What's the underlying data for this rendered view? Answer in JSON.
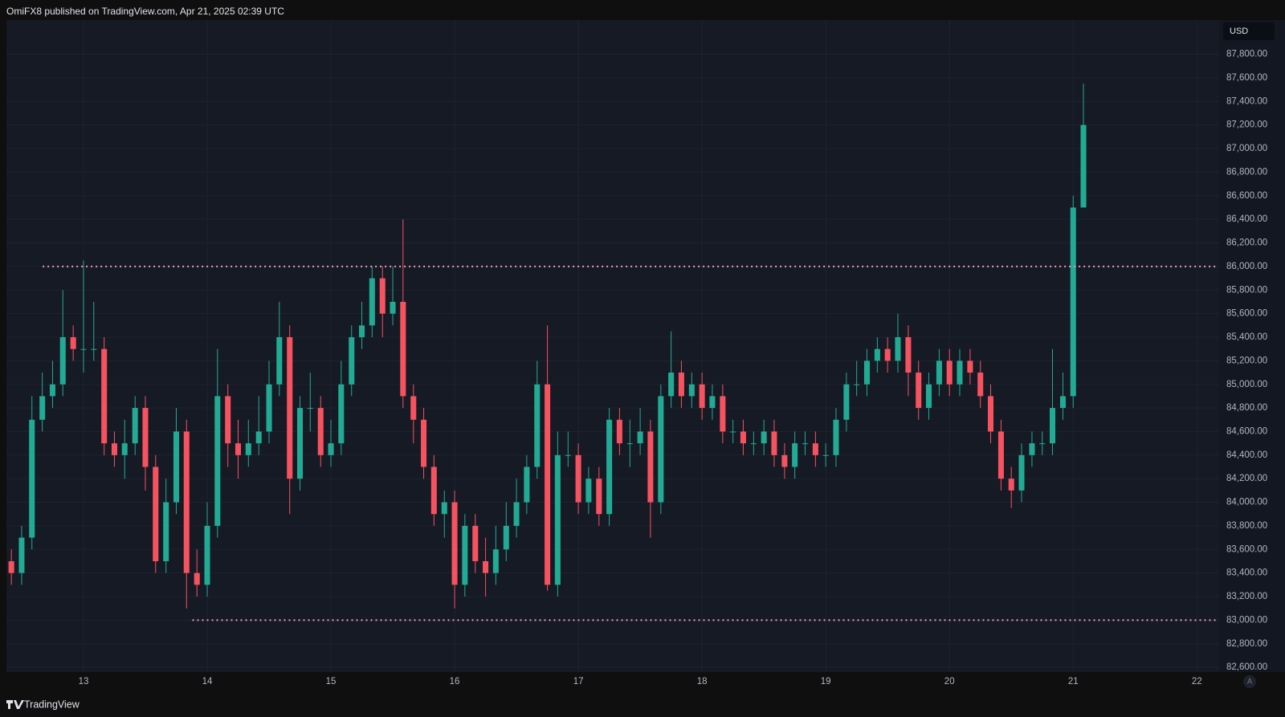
{
  "header": {
    "title": "OmiFX8 published on TradingView.com, Apr 21, 2025 02:39 UTC"
  },
  "chart_data": {
    "type": "candlestick",
    "currency": "USD",
    "x": [
      12.417,
      12.5,
      12.583,
      12.667,
      12.75,
      12.833,
      12.917,
      13,
      13.083,
      13.167,
      13.25,
      13.333,
      13.417,
      13.5,
      13.583,
      13.667,
      13.75,
      13.833,
      13.917,
      14,
      14.083,
      14.167,
      14.25,
      14.333,
      14.417,
      14.5,
      14.583,
      14.667,
      14.75,
      14.833,
      14.917,
      15,
      15.083,
      15.167,
      15.25,
      15.333,
      15.417,
      15.5,
      15.583,
      15.667,
      15.75,
      15.833,
      15.917,
      16,
      16.083,
      16.167,
      16.25,
      16.333,
      16.417,
      16.5,
      16.583,
      16.667,
      16.75,
      16.833,
      16.917,
      17,
      17.083,
      17.167,
      17.25,
      17.333,
      17.417,
      17.5,
      17.583,
      17.667,
      17.75,
      17.833,
      17.917,
      18,
      18.083,
      18.167,
      18.25,
      18.333,
      18.417,
      18.5,
      18.583,
      18.667,
      18.75,
      18.833,
      18.917,
      19,
      19.083,
      19.167,
      19.25,
      19.333,
      19.417,
      19.5,
      19.583,
      19.667,
      19.75,
      19.833,
      19.917,
      20,
      20.083,
      20.167,
      20.25,
      20.333,
      20.417,
      20.5,
      20.583,
      20.667,
      20.75,
      20.833,
      20.917,
      21,
      21.083
    ],
    "open": [
      83500,
      83400,
      83700,
      84700,
      84900,
      85000,
      85400,
      85300,
      85300,
      85300,
      84500,
      84400,
      84500,
      84800,
      84300,
      83500,
      84000,
      84600,
      83400,
      83300,
      83800,
      84900,
      84500,
      84400,
      84500,
      84600,
      85000,
      85400,
      84200,
      84800,
      84800,
      84400,
      84500,
      85000,
      85400,
      85500,
      85900,
      85600,
      85700,
      84900,
      84700,
      84300,
      83900,
      84000,
      83300,
      83800,
      83500,
      83400,
      83600,
      83800,
      84000,
      84300,
      85000,
      83300,
      84400,
      84400,
      84000,
      84200,
      83900,
      84700,
      84500,
      84500,
      84600,
      84000,
      84900,
      85100,
      84900,
      85000,
      84800,
      84900,
      84600,
      84600,
      84500,
      84500,
      84600,
      84400,
      84300,
      84500,
      84500,
      84400,
      84400,
      84700,
      85000,
      85000,
      85200,
      85300,
      85200,
      85400,
      85100,
      84800,
      85000,
      85200,
      85000,
      85200,
      85100,
      84900,
      84600,
      84200,
      84100,
      84400,
      84500,
      84500,
      84800,
      84900,
      86500
    ],
    "high": [
      83600,
      83800,
      84900,
      85100,
      85200,
      85800,
      85500,
      86050,
      85700,
      85400,
      84600,
      84700,
      84900,
      84900,
      84400,
      84200,
      84800,
      84700,
      83600,
      84000,
      85300,
      85000,
      84700,
      84700,
      84900,
      85200,
      85700,
      85500,
      84900,
      85100,
      84900,
      84700,
      85200,
      85500,
      85700,
      86000,
      86000,
      86000,
      86400,
      85000,
      84800,
      84400,
      84100,
      84100,
      83900,
      83900,
      83700,
      83800,
      84000,
      84200,
      84400,
      85200,
      85500,
      84600,
      84600,
      84500,
      84300,
      84300,
      84800,
      84800,
      84700,
      84800,
      84700,
      85000,
      85450,
      85200,
      85100,
      85100,
      85000,
      85000,
      84700,
      84700,
      84600,
      84700,
      84700,
      84500,
      84600,
      84600,
      84600,
      84500,
      84800,
      85100,
      85200,
      85300,
      85400,
      85400,
      85600,
      85500,
      85200,
      85100,
      85300,
      85300,
      85300,
      85300,
      85200,
      85000,
      84700,
      84300,
      84500,
      84600,
      84600,
      85300,
      85100,
      86600,
      87550
    ],
    "low": [
      83300,
      83300,
      83600,
      84600,
      84800,
      84900,
      85200,
      85100,
      85200,
      84400,
      84300,
      84200,
      84400,
      84100,
      83400,
      83400,
      83900,
      83100,
      83200,
      83200,
      83700,
      84300,
      84200,
      84300,
      84400,
      84500,
      84900,
      83900,
      84100,
      84600,
      84300,
      84300,
      84400,
      84900,
      85300,
      85400,
      85400,
      85500,
      84800,
      84500,
      84200,
      83800,
      83700,
      83100,
      83200,
      83400,
      83200,
      83300,
      83500,
      83700,
      83900,
      84200,
      83250,
      83200,
      84300,
      83900,
      83900,
      83800,
      83800,
      84400,
      84300,
      84400,
      83700,
      83900,
      84800,
      84800,
      84800,
      84700,
      84700,
      84500,
      84500,
      84400,
      84400,
      84400,
      84300,
      84200,
      84200,
      84400,
      84300,
      84300,
      84300,
      84600,
      84900,
      84900,
      85100,
      85100,
      85100,
      84900,
      84700,
      84700,
      84900,
      84900,
      84900,
      85000,
      84800,
      84500,
      84100,
      83950,
      84000,
      84300,
      84400,
      84400,
      84700,
      84800,
      86500
    ],
    "close": [
      83400,
      83700,
      84700,
      84900,
      85000,
      85400,
      85300,
      85300,
      85300,
      84500,
      84400,
      84500,
      84800,
      84300,
      83500,
      84000,
      84600,
      83400,
      83300,
      83800,
      84900,
      84500,
      84400,
      84500,
      84600,
      85000,
      85400,
      84200,
      84800,
      84800,
      84400,
      84500,
      85000,
      85400,
      85500,
      85900,
      85600,
      85700,
      84900,
      84700,
      84300,
      83900,
      84000,
      83300,
      83800,
      83500,
      83400,
      83600,
      83800,
      84000,
      84300,
      85000,
      83300,
      84400,
      84400,
      84000,
      84200,
      83900,
      84700,
      84500,
      84500,
      84600,
      84000,
      84900,
      85100,
      84900,
      85000,
      84800,
      84900,
      84600,
      84600,
      84500,
      84500,
      84600,
      84400,
      84300,
      84500,
      84500,
      84400,
      84400,
      84700,
      85000,
      85000,
      85200,
      85300,
      85200,
      85400,
      85100,
      84800,
      85000,
      85200,
      85000,
      85200,
      85100,
      84900,
      84600,
      84200,
      84100,
      84400,
      84500,
      84500,
      84800,
      84900,
      86500,
      87200
    ],
    "up_color": "#22ab94",
    "down_color": "#f7525f",
    "xlim": [
      12.39,
      22.18
    ],
    "xticks": [
      13,
      14,
      15,
      16,
      17,
      18,
      19,
      20,
      21,
      22
    ],
    "ylim": [
      82560,
      88090
    ],
    "yticks": [
      {
        "value": 82600,
        "label": "82,600.00"
      },
      {
        "value": 82800,
        "label": "82,800.00"
      },
      {
        "value": 83000,
        "label": "83,000.00"
      },
      {
        "value": 83200,
        "label": "83,200.00"
      },
      {
        "value": 83400,
        "label": "83,400.00"
      },
      {
        "value": 83600,
        "label": "83,600.00"
      },
      {
        "value": 83800,
        "label": "83,800.00"
      },
      {
        "value": 84000,
        "label": "84,000.00"
      },
      {
        "value": 84200,
        "label": "84,200.00"
      },
      {
        "value": 84400,
        "label": "84,400.00"
      },
      {
        "value": 84600,
        "label": "84,600.00"
      },
      {
        "value": 84800,
        "label": "84,800.00"
      },
      {
        "value": 85000,
        "label": "85,000.00"
      },
      {
        "value": 85200,
        "label": "85,200.00"
      },
      {
        "value": 85400,
        "label": "85,400.00"
      },
      {
        "value": 85600,
        "label": "85,600.00"
      },
      {
        "value": 85800,
        "label": "85,800.00"
      },
      {
        "value": 86000,
        "label": "86,000.00"
      },
      {
        "value": 86200,
        "label": "86,200.00"
      },
      {
        "value": 86400,
        "label": "86,400.00"
      },
      {
        "value": 86600,
        "label": "86,600.00"
      },
      {
        "value": 86800,
        "label": "86,800.00"
      },
      {
        "value": 87000,
        "label": "87,000.00"
      },
      {
        "value": 87200,
        "label": "87,200.00"
      },
      {
        "value": 87400,
        "label": "87,400.00"
      },
      {
        "value": 87600,
        "label": "87,600.00"
      },
      {
        "value": 87800,
        "label": "87,800.00"
      }
    ],
    "grid": true,
    "levels": [
      {
        "value": 86000,
        "start": 12.67,
        "color": "#f0a0b8"
      },
      {
        "value": 83000,
        "start": 13.88,
        "color": "#f0a0b8"
      }
    ]
  },
  "footer": {
    "brand": "TradingView",
    "auto_button": "A"
  }
}
